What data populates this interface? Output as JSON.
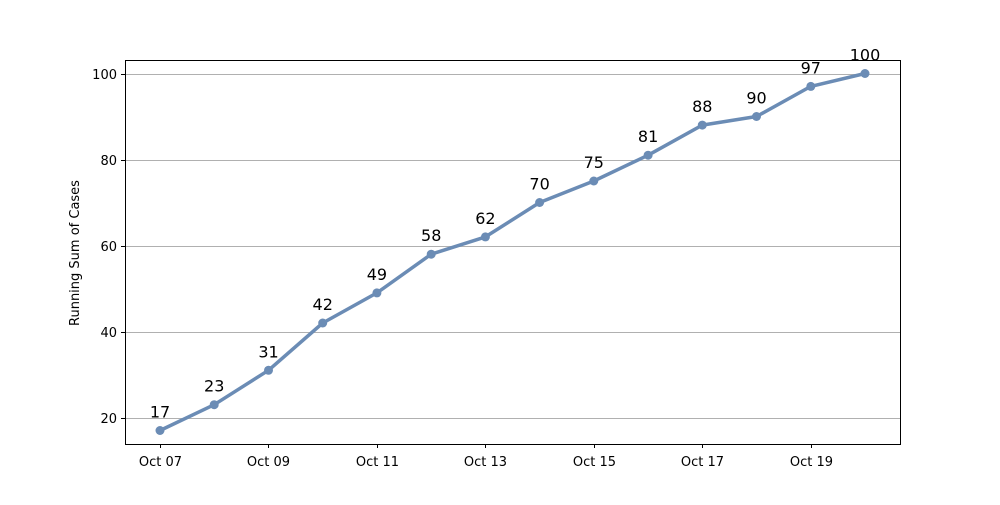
{
  "chart_data": {
    "type": "line",
    "title": "",
    "xlabel": "",
    "ylabel": "Running Sum of Cases",
    "x": [
      "Oct 07",
      "Oct 08",
      "Oct 09",
      "Oct 10",
      "Oct 11",
      "Oct 12",
      "Oct 13",
      "Oct 14",
      "Oct 15",
      "Oct 16",
      "Oct 17",
      "Oct 18",
      "Oct 19",
      "Oct 20"
    ],
    "x_tick_labels": [
      "Oct 07",
      "Oct 09",
      "Oct 11",
      "Oct 13",
      "Oct 15",
      "Oct 17",
      "Oct 19"
    ],
    "series": [
      {
        "values": [
          17,
          23,
          31,
          42,
          49,
          58,
          62,
          70,
          75,
          81,
          88,
          90,
          97,
          100
        ],
        "color": "#6b8cb5"
      }
    ],
    "y_ticks": [
      20,
      40,
      60,
      80,
      100
    ],
    "ylim": [
      13.85,
      103.15
    ],
    "grid": "horizontal",
    "legend": "none",
    "data_labels": true
  }
}
